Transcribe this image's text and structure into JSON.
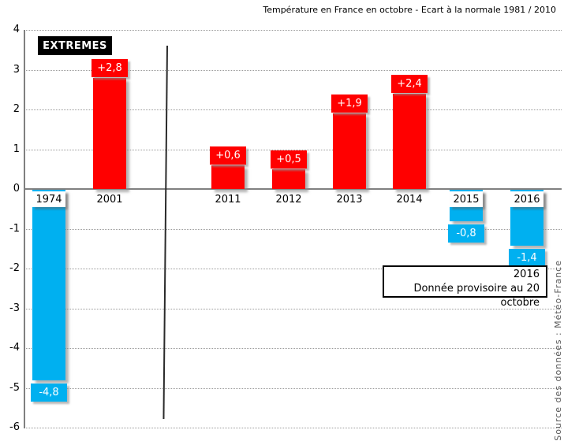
{
  "header": {
    "title": "Température en France en octobre - Ecart à la normale 1981 / 2010"
  },
  "labels": {
    "extremes": "EXTREMES",
    "source": "Source des données : Météo-France"
  },
  "annotation": {
    "line1": "2016",
    "line2": "Donnée provisoire au 20 octobre"
  },
  "colors": {
    "positive_bar": "#ff0000",
    "negative_bar": "#00b0f0",
    "gridline": "#9a9a9a",
    "axis": "#808080",
    "source_text": "#595959"
  },
  "chart_data": {
    "type": "bar",
    "title": "Température en France en octobre - Ecart à la normale 1981 / 2010",
    "xlabel": "",
    "ylabel": "",
    "ylim": [
      -6,
      4
    ],
    "yticks": [
      4,
      3,
      2,
      1,
      0,
      -1,
      -2,
      -3,
      -4,
      -5,
      -6
    ],
    "grid": "horizontal-dotted",
    "legend": "none",
    "sections": [
      "extremes",
      "extremes",
      "recent",
      "recent",
      "recent",
      "recent",
      "recent",
      "recent"
    ],
    "categories": [
      "1974",
      "2001",
      "2011",
      "2012",
      "2013",
      "2014",
      "2015",
      "2016"
    ],
    "values": [
      -4.8,
      2.8,
      0.6,
      0.5,
      1.9,
      2.4,
      -0.8,
      -1.4
    ],
    "value_labels": [
      "-4,8",
      "+2,8",
      "+0,6",
      "+0,5",
      "+1,9",
      "+2,4",
      "-0,8",
      "-1,4"
    ]
  }
}
